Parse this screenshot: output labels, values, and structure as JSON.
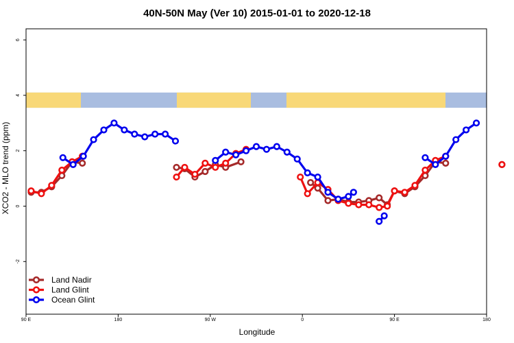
{
  "chart_data": {
    "type": "line",
    "title": "40N-50N May (Ver 10)   2015-01-01 to 2020-12-18",
    "xlabel": "Longitude",
    "ylabel": "XCO2 - MLO trend (ppm)",
    "x_ticks": [
      {
        "value": 90,
        "label": "90 E"
      },
      {
        "value": 180,
        "label": "180"
      },
      {
        "value": 270,
        "label": "90 W"
      },
      {
        "value": 360,
        "label": "0"
      },
      {
        "value": 450,
        "label": "90 E"
      },
      {
        "value": 540,
        "label": "180"
      }
    ],
    "y_ticks": [
      {
        "value": -2,
        "label": "-2"
      },
      {
        "value": 0,
        "label": "0"
      },
      {
        "value": 2,
        "label": "2"
      },
      {
        "value": 4,
        "label": "4"
      },
      {
        "value": 6,
        "label": "6"
      }
    ],
    "xlim": [
      90,
      540
    ],
    "ylim": [
      -3.9,
      6.4
    ],
    "map_strip": {
      "ymin": 3.55,
      "ymax": 4.1,
      "land_color": "#f8d878",
      "ocean_color": "#a9bde0"
    },
    "legend": {
      "position": "bottom-left"
    },
    "series": [
      {
        "name": "Land Nadir",
        "color": "#a52a2a",
        "segments": [
          [
            [
              95,
              0.5
            ],
            [
              105,
              0.5
            ],
            [
              115,
              0.7
            ],
            [
              125,
              1.1
            ],
            [
              135,
              1.6
            ],
            [
              145,
              1.55
            ]
          ],
          [
            [
              237,
              1.4
            ],
            [
              245,
              1.35
            ],
            [
              255,
              1.05
            ],
            [
              265,
              1.25
            ],
            [
              275,
              1.5
            ],
            [
              285,
              1.4
            ],
            [
              300,
              1.6
            ]
          ],
          [
            [
              368,
              0.85
            ],
            [
              375,
              0.65
            ],
            [
              385,
              0.2
            ],
            [
              395,
              0.25
            ],
            [
              405,
              0.15
            ],
            [
              415,
              0.15
            ],
            [
              425,
              0.2
            ],
            [
              435,
              0.3
            ],
            [
              443,
              0.05
            ],
            [
              450,
              0.55
            ],
            [
              460,
              0.45
            ],
            [
              470,
              0.7
            ],
            [
              480,
              1.1
            ],
            [
              490,
              1.6
            ],
            [
              500,
              1.55
            ]
          ],
          [
            [
              555,
              1.5
            ]
          ]
        ]
      },
      {
        "name": "Land Glint",
        "color": "#ee1111",
        "segments": [
          [
            [
              95,
              0.55
            ],
            [
              105,
              0.45
            ],
            [
              115,
              0.75
            ],
            [
              125,
              1.3
            ],
            [
              135,
              1.6
            ],
            [
              145,
              1.8
            ]
          ],
          [
            [
              237,
              1.05
            ],
            [
              245,
              1.4
            ],
            [
              255,
              1.15
            ],
            [
              265,
              1.55
            ],
            [
              275,
              1.4
            ],
            [
              285,
              1.55
            ],
            [
              295,
              1.9
            ],
            [
              305,
              2.05
            ]
          ],
          [
            [
              358,
              1.05
            ],
            [
              365,
              0.45
            ],
            [
              375,
              0.85
            ],
            [
              385,
              0.6
            ],
            [
              395,
              0.2
            ],
            [
              405,
              0.1
            ],
            [
              415,
              0.05
            ],
            [
              425,
              0.05
            ],
            [
              435,
              -0.05
            ],
            [
              443,
              0.0
            ],
            [
              450,
              0.55
            ],
            [
              460,
              0.5
            ],
            [
              470,
              0.75
            ],
            [
              480,
              1.3
            ],
            [
              490,
              1.65
            ],
            [
              500,
              1.8
            ]
          ],
          [
            [
              555,
              1.5
            ]
          ]
        ]
      },
      {
        "name": "Ocean Glint",
        "color": "#0000ee",
        "segments": [
          [
            [
              126,
              1.75
            ],
            [
              136,
              1.5
            ],
            [
              146,
              1.8
            ],
            [
              156,
              2.4
            ],
            [
              166,
              2.75
            ],
            [
              176,
              3.0
            ],
            [
              186,
              2.75
            ],
            [
              196,
              2.6
            ],
            [
              206,
              2.5
            ],
            [
              216,
              2.6
            ],
            [
              226,
              2.6
            ],
            [
              236,
              2.35
            ]
          ],
          [
            [
              275,
              1.65
            ],
            [
              285,
              1.95
            ],
            [
              295,
              1.85
            ],
            [
              305,
              2.0
            ],
            [
              315,
              2.15
            ],
            [
              325,
              2.05
            ],
            [
              335,
              2.15
            ],
            [
              345,
              1.95
            ],
            [
              355,
              1.7
            ],
            [
              365,
              1.2
            ],
            [
              375,
              1.05
            ],
            [
              385,
              0.5
            ],
            [
              395,
              0.25
            ],
            [
              405,
              0.35
            ],
            [
              410,
              0.5
            ]
          ],
          [
            [
              435,
              -0.55
            ],
            [
              440,
              -0.35
            ]
          ],
          [
            [
              480,
              1.75
            ],
            [
              490,
              1.5
            ],
            [
              500,
              1.8
            ],
            [
              510,
              2.4
            ],
            [
              520,
              2.75
            ],
            [
              530,
              3.0
            ]
          ]
        ]
      }
    ]
  }
}
